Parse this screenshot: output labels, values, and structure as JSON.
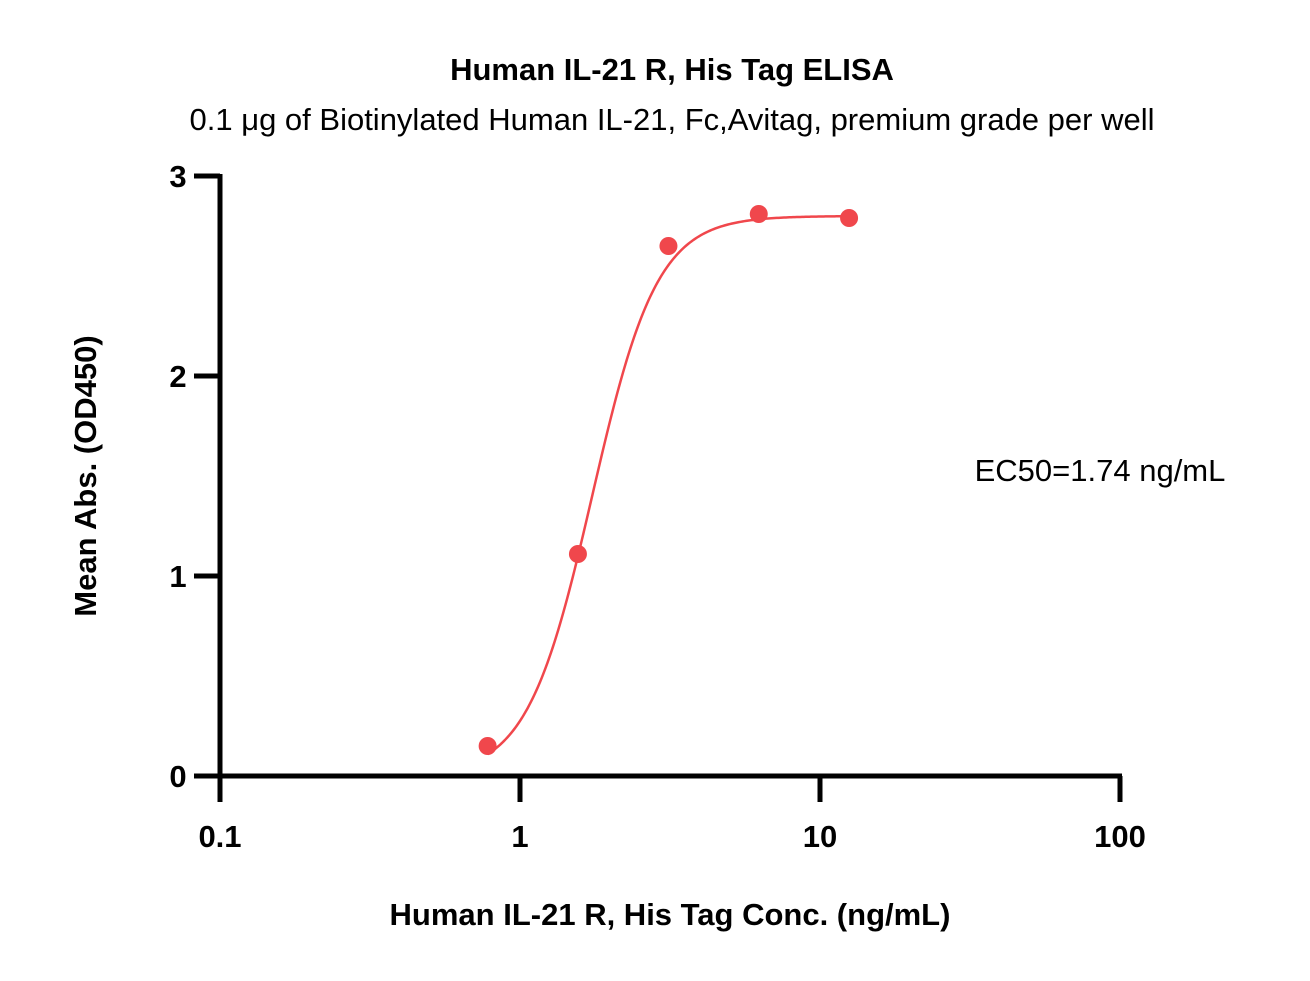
{
  "chart_data": {
    "type": "scatter",
    "title": "Human IL-21 R, His Tag ELISA",
    "subtitle": "0.1 μg of Biotinylated Human IL-21, Fc,Avitag, premium grade per well",
    "xlabel": "Human IL-21 R, His Tag Conc. (ng/mL)",
    "ylabel": "Mean Abs. (OD450)",
    "x_scale": "log",
    "xlim": [
      0.1,
      100
    ],
    "ylim": [
      0,
      3
    ],
    "x_ticks": [
      0.1,
      1,
      10,
      100
    ],
    "x_tick_labels": [
      "0.1",
      "1",
      "10",
      "100"
    ],
    "y_ticks": [
      0,
      1,
      2,
      3
    ],
    "y_tick_labels": [
      "0",
      "1",
      "2",
      "3"
    ],
    "grid": false,
    "color": "#f0474c",
    "series": [
      {
        "x": [
          0.78,
          1.56,
          3.125,
          6.25,
          12.5
        ],
        "y": [
          0.15,
          1.11,
          2.65,
          2.81,
          2.79
        ],
        "fit": "4PL",
        "fit_params": {
          "bottom": 0.0,
          "top": 2.8,
          "ec50": 1.74,
          "hill": 4.0
        }
      }
    ],
    "annotation": "EC50=1.74 ng/mL"
  }
}
